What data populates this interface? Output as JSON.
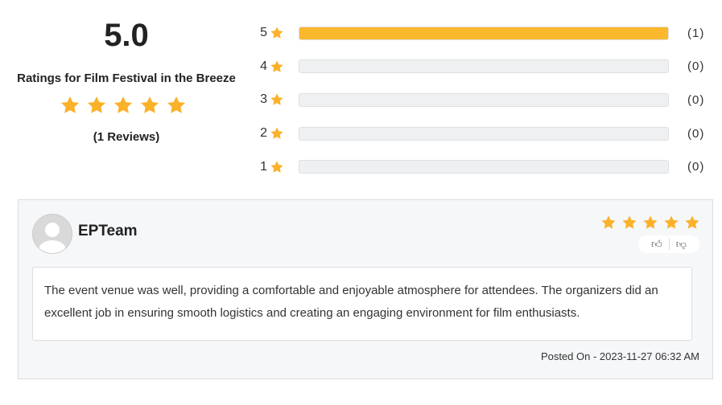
{
  "summary": {
    "score": "5.0",
    "title": "Ratings for Film Festival in the Breeze",
    "stars": 5,
    "reviews_label": "(1 Reviews)"
  },
  "distribution": [
    {
      "stars": "5",
      "count": "(1)",
      "fraction": 1.0
    },
    {
      "stars": "4",
      "count": "(0)",
      "fraction": 0
    },
    {
      "stars": "3",
      "count": "(0)",
      "fraction": 0
    },
    {
      "stars": "2",
      "count": "(0)",
      "fraction": 0
    },
    {
      "stars": "1",
      "count": "(0)",
      "fraction": 0
    }
  ],
  "review": {
    "author": "EPTeam",
    "rating": 5,
    "text": "The event venue was well, providing a comfortable and enjoyable atmosphere for attendees. The organizers did an excellent job in ensuring smooth logistics and creating an engaging environment for film enthusiasts.",
    "posted": "Posted On - 2023-11-27 06:32 AM",
    "icons": [
      "thumbs-up-icon",
      "thumbs-down-icon"
    ]
  },
  "colors": {
    "star": "#fbb12a",
    "bar_fill": "#fbb82c",
    "bar_empty": "#eef0f1"
  }
}
